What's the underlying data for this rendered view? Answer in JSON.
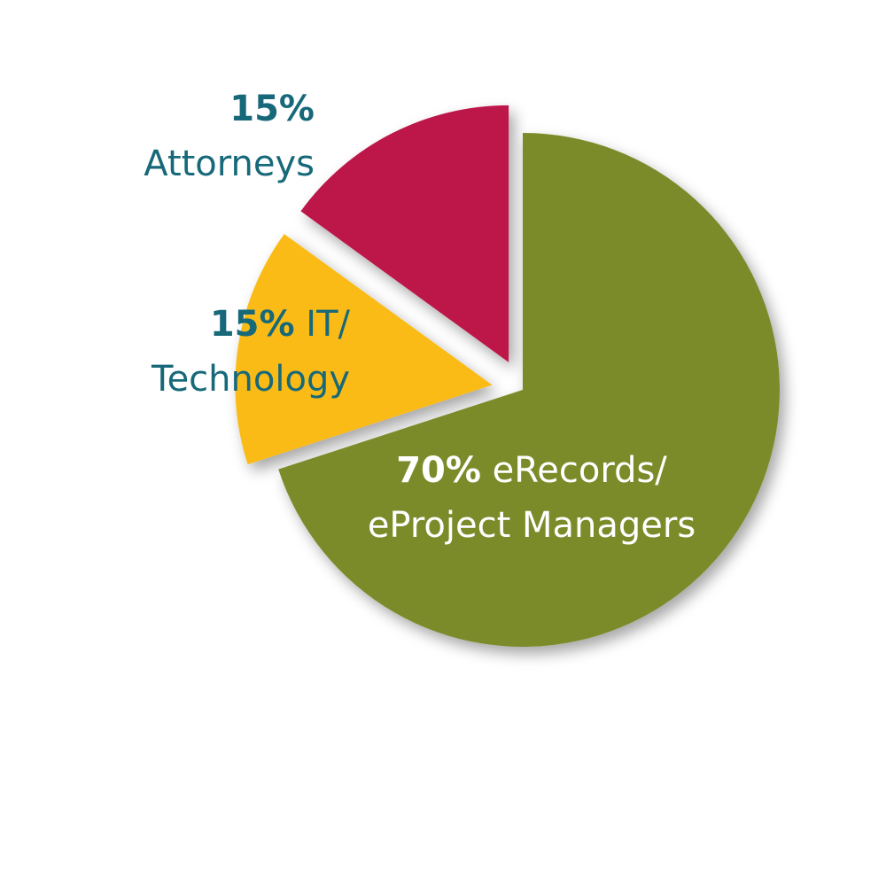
{
  "chart_data": {
    "type": "pie",
    "categories": [
      "eRecords/ eProject Managers",
      "IT/ Technology",
      "Attorneys"
    ],
    "values": [
      70,
      15,
      15
    ],
    "value_labels": [
      "70%",
      "15%",
      "15%"
    ],
    "colors": [
      "#7b8b2c",
      "#fbbb15",
      "#bd1748"
    ]
  }
}
